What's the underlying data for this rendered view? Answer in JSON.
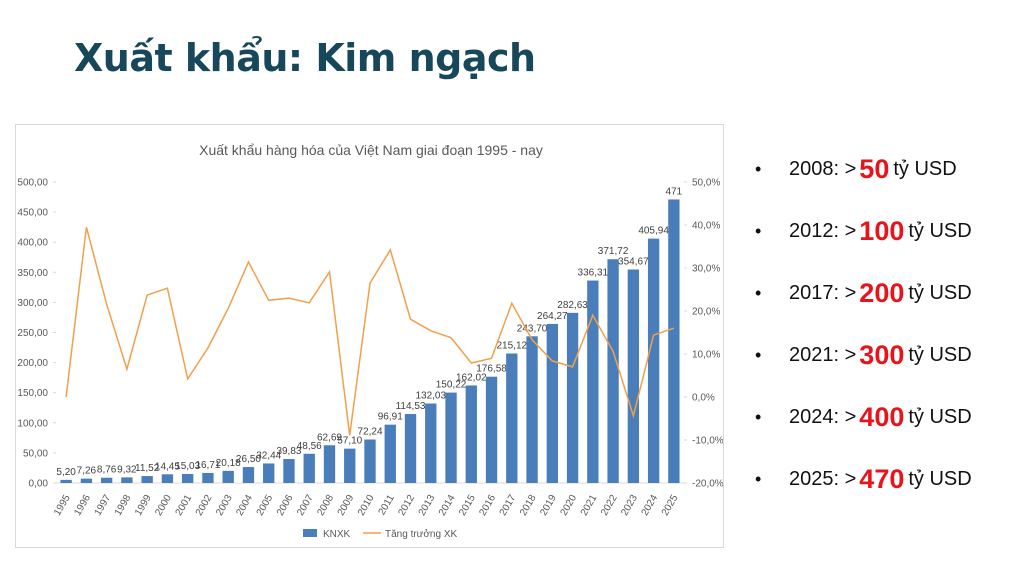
{
  "slide": {
    "title": "Xuất khẩu: Kim ngạch",
    "bullets": [
      {
        "prefix": "2008: >",
        "amount": "50",
        "unit": "tỷ USD"
      },
      {
        "prefix": "2012: >",
        "amount": "100",
        "unit": "tỷ USD"
      },
      {
        "prefix": "2017: >",
        "amount": "200",
        "unit": "tỷ USD"
      },
      {
        "prefix": "2021: >",
        "amount": "300",
        "unit": "tỷ USD"
      },
      {
        "prefix": "2024: >",
        "amount": "400",
        "unit": "tỷ USD"
      },
      {
        "prefix": "2025: >",
        "amount": "470",
        "unit": "tỷ USD"
      }
    ]
  },
  "chart_data": {
    "type": "bar",
    "title": "Xuất khẩu hàng hóa của Việt Nam giai đoạn 1995 - nay",
    "categories": [
      "1995",
      "1996",
      "1997",
      "1998",
      "1999",
      "2000",
      "2001",
      "2002",
      "2003",
      "2004",
      "2005",
      "2006",
      "2007",
      "2008",
      "2009",
      "2010",
      "2011",
      "2012",
      "2013",
      "2014",
      "2015",
      "2016",
      "2017",
      "2018",
      "2019",
      "2020",
      "2021",
      "2022",
      "2023",
      "2024",
      "2025"
    ],
    "series": [
      {
        "name": "KNXK",
        "type": "bar",
        "color": "#4a7ebb",
        "values": [
          5.2,
          7.26,
          8.76,
          9.32,
          11.52,
          14.45,
          15.03,
          16.71,
          20.18,
          26.5,
          32.44,
          39.83,
          48.56,
          62.69,
          57.1,
          72.24,
          96.91,
          114.53,
          132.03,
          150.22,
          162.02,
          176.58,
          215.12,
          243.7,
          264.27,
          282.63,
          336.31,
          371.72,
          354.67,
          405.94,
          471
        ],
        "value_labels": [
          "5,20",
          "7,26",
          "8,76",
          "9,32",
          "11,52",
          "14,45",
          "15,03",
          "16,71",
          "20,18",
          "26,50",
          "32,44",
          "39,83",
          "48,56",
          "62,69",
          "57,10",
          "72,24",
          "96,91",
          "114,53",
          "132,03",
          "150,22",
          "162,02",
          "176,58",
          "215,12",
          "243,70",
          "264,27",
          "282,63",
          "336,31",
          "371,72",
          "354,67",
          "405,94",
          "471"
        ]
      },
      {
        "name": "Tăng trưởng XK",
        "type": "line",
        "axis": "y2",
        "color": "#f0a04b",
        "values": [
          0,
          39.5,
          21.6,
          6.5,
          23.7,
          25.3,
          4.2,
          11.4,
          20.6,
          31.4,
          22.5,
          23,
          21.9,
          29.1,
          -8.9,
          26.5,
          34.2,
          18.1,
          15.4,
          13.8,
          7.9,
          9,
          21.8,
          13.3,
          8.4,
          7,
          19,
          10.6,
          -4.4,
          14.4,
          16
        ]
      }
    ],
    "ylim": [
      0,
      500
    ],
    "yticks": [
      {
        "value": 0,
        "label": "0,00"
      },
      {
        "value": 50,
        "label": "50,00"
      },
      {
        "value": 100,
        "label": "100,00"
      },
      {
        "value": 150,
        "label": "150,00"
      },
      {
        "value": 200,
        "label": "200,00"
      },
      {
        "value": 250,
        "label": "250,00"
      },
      {
        "value": 300,
        "label": "300,00"
      },
      {
        "value": 350,
        "label": "350,00"
      },
      {
        "value": 400,
        "label": "400,00"
      },
      {
        "value": 450,
        "label": "450,00"
      },
      {
        "value": 500,
        "label": "500,00"
      }
    ],
    "y2lim": [
      -20,
      50
    ],
    "y2ticks": [
      {
        "value": -20,
        "label": "-20,0%"
      },
      {
        "value": -10,
        "label": "-10,0%"
      },
      {
        "value": 0,
        "label": "0,0%"
      },
      {
        "value": 10,
        "label": "10,0%"
      },
      {
        "value": 20,
        "label": "20,0%"
      },
      {
        "value": 30,
        "label": "30,0%"
      },
      {
        "value": 40,
        "label": "40,0%"
      },
      {
        "value": 50,
        "label": "50,0%"
      }
    ],
    "grid": false,
    "legend": "bottom"
  }
}
